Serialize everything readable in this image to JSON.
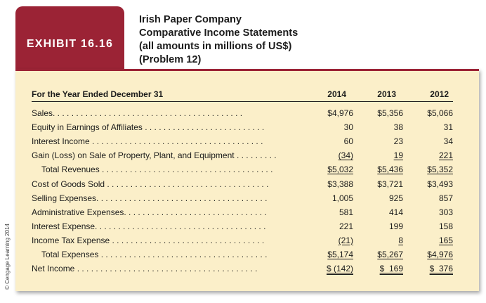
{
  "exhibit": {
    "badge": "EXHIBIT 16.16",
    "title_lines": [
      "Irish Paper Company",
      "Comparative Income Statements",
      "(all amounts in millions of US$)",
      "(Problem 12)"
    ]
  },
  "copyright": "© Cengage Learning 2014",
  "table": {
    "header": {
      "label": "For the Year Ended December 31",
      "years": [
        "2014",
        "2013",
        "2012"
      ]
    },
    "rows": [
      {
        "label": "Sales. . . . . . . . . . . . . . . . . . . . . . . . . . . . . . . . . . . . . . . . .",
        "values": [
          "$4,976",
          "$5,356",
          "$5,066"
        ]
      },
      {
        "label": "Equity in Earnings of Affiliates . . . . . . . . . . . . . . . . . . . . . . . . . .",
        "values": [
          "30",
          "38",
          "31"
        ]
      },
      {
        "label": "Interest Income . . . . . . . . . . . . . . . . . . . . . . . . . . . . . . . . . . . . .",
        "values": [
          "60",
          "23",
          "34"
        ]
      },
      {
        "label": "Gain (Loss) on Sale of Property, Plant, and Equipment . . . . . . . . .",
        "values": [
          "(34)",
          "19",
          "221"
        ]
      },
      {
        "label": "Total Revenues . . . . . . . . . . . . . . . . . . . . . . . . . . . . . . . . . . . . .",
        "values": [
          "$5,032",
          "$5,436",
          "$5,352"
        ]
      },
      {
        "label": "Cost of Goods Sold . . . . . . . . . . . . . . . . . . . . . . . . . . . . . . . . . . .",
        "values": [
          "$3,388",
          "$3,721",
          "$3,493"
        ]
      },
      {
        "label": "Selling Expenses. . . . . . . . . . . . . . . . . . . . . . . . . . . . . . . . . . . . .",
        "values": [
          "1,005",
          "925",
          "857"
        ]
      },
      {
        "label": "Administrative Expenses. . . . . . . . . . . . . . . . . . . . . . . . . . . . . . .",
        "values": [
          "581",
          "414",
          "303"
        ]
      },
      {
        "label": "Interest Expense. . . . . . . . . . . . . . . . . . . . . . . . . . . . . . . . . . . . .",
        "values": [
          "221",
          "199",
          "158"
        ]
      },
      {
        "label": "Income Tax Expense . . . . . . . . . . . . . . . . . . . . . . . . . . . . . . . . .",
        "values": [
          "(21)",
          "8",
          "165"
        ]
      },
      {
        "label": "Total Expenses . . . . . . . . . . . . . . . . . . . . . . . . . . . . . . . . . . . .",
        "values": [
          "$5,174",
          "$5,267",
          "$4,976"
        ]
      },
      {
        "label": "Net Income . . . . . . . . . . . . . . . . . . . . . . . . . . . . . . . . . . . . . . .",
        "values": [
          "$ (142)",
          "$  169",
          "$  376"
        ]
      }
    ]
  },
  "colors": {
    "badge_bg": "#9b2335",
    "panel_bg": "#fbefc9"
  }
}
